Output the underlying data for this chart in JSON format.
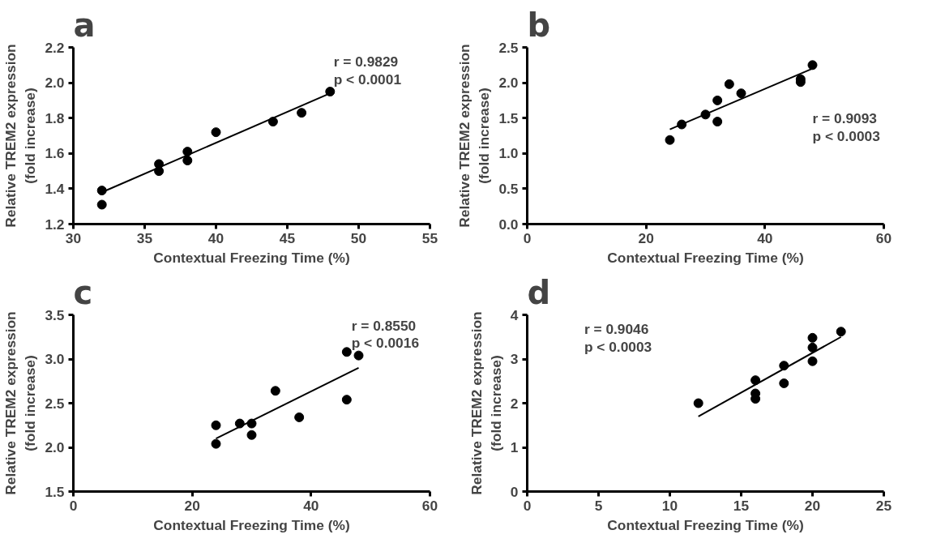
{
  "chart_data": [
    {
      "type": "scatter",
      "title": "a",
      "xlabel": "Contextual Freezing Time (%)",
      "ylabel": "Relative TREM2 expression\n(fold increase)",
      "annotations": [
        "r = 0.9829",
        "p < 0.0001"
      ],
      "xlim": [
        30,
        55
      ],
      "xticks": [
        30,
        35,
        40,
        45,
        50,
        55
      ],
      "ylim": [
        1.2,
        2.2
      ],
      "yticks": [
        1.2,
        1.4,
        1.6,
        1.8,
        {
          "value": 2.0,
          "label": "2.0"
        },
        2.2
      ],
      "grid": false,
      "series": [
        {
          "marker": "circle",
          "color": "#000000",
          "x": [
            32,
            32,
            36,
            36,
            38,
            38,
            40,
            44,
            46,
            48
          ],
          "values": [
            1.39,
            1.31,
            1.54,
            1.5,
            1.61,
            1.56,
            1.72,
            1.78,
            1.83,
            1.95
          ]
        },
        {
          "type": "line",
          "marker": "none",
          "color": "#000000",
          "x": [
            32,
            48
          ],
          "values": [
            1.38,
            1.94
          ]
        }
      ]
    },
    {
      "type": "scatter",
      "title": "b",
      "xlabel": "Contextual Freezing Time (%)",
      "ylabel": "Relative TREM2 expression\n(fold increase)",
      "annotations": [
        "r = 0.9093",
        "p < 0.0003"
      ],
      "xlim": [
        0,
        60
      ],
      "xticks": [
        0,
        20,
        40,
        60
      ],
      "ylim": [
        0,
        2.5
      ],
      "yticks": [
        {
          "value": 0,
          "label": "0.0"
        },
        0.5,
        {
          "value": 1,
          "label": "1.0"
        },
        1.5,
        {
          "value": 2,
          "label": "2.0"
        },
        2.5
      ],
      "grid": false,
      "series": [
        {
          "marker": "circle",
          "color": "#000000",
          "x": [
            24,
            26,
            30,
            32,
            32,
            34,
            36,
            46,
            46,
            48
          ],
          "values": [
            1.19,
            1.41,
            1.55,
            1.75,
            1.45,
            1.98,
            1.85,
            2.05,
            2.01,
            2.25
          ]
        },
        {
          "type": "line",
          "marker": "none",
          "color": "#000000",
          "x": [
            24,
            48
          ],
          "values": [
            1.34,
            2.2
          ]
        }
      ]
    },
    {
      "type": "scatter",
      "title": "c",
      "xlabel": "Contextual Freezing Time (%)",
      "ylabel": "Relative TREM2 expression\n(fold increase)",
      "annotations": [
        "r = 0.8550",
        "p < 0.0016"
      ],
      "xlim": [
        0,
        60
      ],
      "xticks": [
        0,
        20,
        40,
        60
      ],
      "ylim": [
        1.5,
        3.5
      ],
      "yticks": [
        1.5,
        {
          "value": 2,
          "label": "2.0"
        },
        2.5,
        {
          "value": 3,
          "label": "3.0"
        },
        3.5
      ],
      "grid": false,
      "series": [
        {
          "marker": "circle",
          "color": "#000000",
          "x": [
            24,
            24,
            28,
            30,
            30,
            34,
            38,
            46,
            46,
            48
          ],
          "values": [
            2.25,
            2.04,
            2.27,
            2.27,
            2.14,
            2.64,
            2.34,
            3.08,
            2.54,
            3.04
          ]
        },
        {
          "type": "line",
          "marker": "none",
          "color": "#000000",
          "x": [
            24,
            48
          ],
          "values": [
            2.1,
            2.9
          ]
        }
      ]
    },
    {
      "type": "scatter",
      "title": "d",
      "xlabel": "Contextual Freezing Time (%)",
      "ylabel": "Relative TREM2 expression\n(fold increase)",
      "annotations": [
        "r = 0.9046",
        "p < 0.0003"
      ],
      "xlim": [
        0,
        25
      ],
      "xticks": [
        0,
        5,
        10,
        15,
        20,
        25
      ],
      "ylim": [
        0,
        4
      ],
      "yticks": [
        0,
        1,
        2,
        3,
        4
      ],
      "grid": false,
      "series": [
        {
          "marker": "circle",
          "color": "#000000",
          "x": [
            12,
            16,
            16,
            16,
            18,
            18,
            20,
            20,
            20,
            22
          ],
          "values": [
            2.0,
            2.52,
            2.22,
            2.1,
            2.85,
            2.45,
            3.48,
            3.26,
            2.95,
            3.62
          ]
        },
        {
          "type": "line",
          "marker": "none",
          "color": "#000000",
          "x": [
            12,
            22
          ],
          "values": [
            1.7,
            3.5
          ]
        }
      ]
    }
  ]
}
